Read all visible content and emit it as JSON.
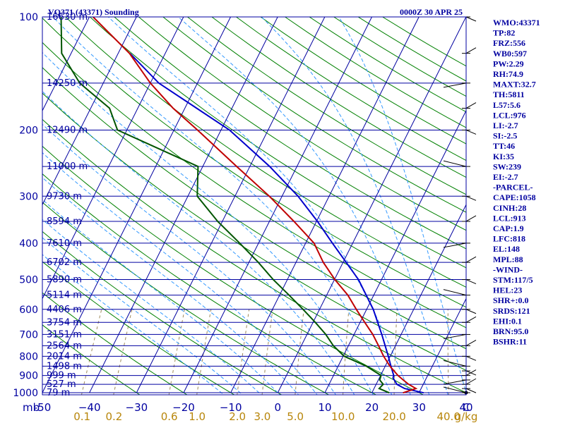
{
  "header": {
    "title": "VQ371 (43371) Sounding",
    "time": "0000Z 30 APR 25"
  },
  "indices": [
    "WMO:43371",
    "TP:82",
    "FRZ:556",
    "WB0:597",
    "PW:2.29",
    "RH:74.9",
    "MAXT:32.7",
    "TH:5811",
    "L57:5.6",
    "LCL:976",
    "LI:-2.7",
    "SI:-2.5",
    "TT:46",
    "KI:35",
    "SW:239",
    "EI:-2.7",
    "-PARCEL-",
    "CAPE:1058",
    "CINH:28",
    "LCL:913",
    "CAP:1.9",
    "LFC:818",
    "EL:148",
    "MPL:88",
    "-WIND-",
    "STM:117/5",
    "HEL:23",
    "SHR+:0.0",
    "SRDS:121",
    "EHI:0.1",
    "BRN:95.0",
    "BSHR:11"
  ],
  "colors": {
    "isobar": "#0000a0",
    "isotherm": "#0000a0",
    "dry_adiabat": "#008000",
    "moist_adiabat": "#3399ff",
    "mixing_ratio": "#9e8a5a",
    "temperature": "#c00000",
    "dewpoint": "#005500",
    "parcel": "#0000cc",
    "wind_barb": "#000000",
    "w_labels": "#b8860b"
  },
  "chart_data": {
    "type": "skew-t log-p sounding",
    "title": "VQ371 (43371) Sounding",
    "subtitle": "0000Z 30 APR 25",
    "pressure_axis": {
      "ticks": [
        100,
        200,
        300,
        400,
        500,
        600,
        700,
        800,
        900,
        1000
      ],
      "labels": [
        "100",
        "200",
        "300",
        "400",
        "500",
        "600",
        "700",
        "800",
        "900",
        "1000"
      ],
      "unit_label": "mb",
      "range": [
        100,
        1000
      ],
      "scale": "log"
    },
    "temperature_axis": {
      "ticks": [
        -50,
        -40,
        -30,
        -20,
        -10,
        0,
        10,
        20,
        30,
        40
      ],
      "labels": [
        "-50",
        "−40",
        "−30",
        "−20",
        "−10",
        "0",
        "10",
        "20",
        "30",
        "40"
      ],
      "unit_label": "C"
    },
    "mixing_ratio_axis": {
      "values": [
        0.1,
        0.2,
        0.6,
        1.0,
        2.0,
        3.0,
        5.0,
        10.0,
        20.0,
        40.0
      ],
      "labels": [
        "0.1",
        "0.2",
        "0.6",
        "1.0",
        "2.0",
        "3.0",
        "5.0",
        "10.0",
        "20.0",
        "40.0"
      ],
      "unit_label": "g/kg"
    },
    "heights": [
      {
        "p": 100,
        "label": "16630 m"
      },
      {
        "p": 150,
        "label": "14250 m"
      },
      {
        "p": 200,
        "label": "12490 m"
      },
      {
        "p": 250,
        "label": "11000 m"
      },
      {
        "p": 300,
        "label": "9730 m"
      },
      {
        "p": 350,
        "label": "8594 m"
      },
      {
        "p": 400,
        "label": "7610 m"
      },
      {
        "p": 450,
        "label": "6702 m"
      },
      {
        "p": 500,
        "label": "5890 m"
      },
      {
        "p": 550,
        "label": "5114 m"
      },
      {
        "p": 600,
        "label": "4406 m"
      },
      {
        "p": 650,
        "label": "3754 m"
      },
      {
        "p": 700,
        "label": "3151 m"
      },
      {
        "p": 750,
        "label": "2564 m"
      },
      {
        "p": 800,
        "label": "2014 m"
      },
      {
        "p": 850,
        "label": "1498 m"
      },
      {
        "p": 900,
        "label": "999 m"
      },
      {
        "p": 950,
        "label": "527 m"
      },
      {
        "p": 1000,
        "label": "79 m"
      }
    ],
    "temperature": [
      {
        "p": 1001,
        "t": 26.6
      },
      {
        "p": 975,
        "t": 28.9
      },
      {
        "p": 950,
        "t": 26.9
      },
      {
        "p": 925,
        "t": 25.3
      },
      {
        "p": 900,
        "t": 23.7
      },
      {
        "p": 850,
        "t": 21.0
      },
      {
        "p": 800,
        "t": 18.6
      },
      {
        "p": 750,
        "t": 16.4
      },
      {
        "p": 700,
        "t": 14.0
      },
      {
        "p": 650,
        "t": 11.0
      },
      {
        "p": 600,
        "t": 7.8
      },
      {
        "p": 550,
        "t": 4.5
      },
      {
        "p": 500,
        "t": 0.1
      },
      {
        "p": 450,
        "t": -4.2
      },
      {
        "p": 400,
        "t": -8.2
      },
      {
        "p": 350,
        "t": -14.8
      },
      {
        "p": 300,
        "t": -22.7
      },
      {
        "p": 250,
        "t": -32.8
      },
      {
        "p": 200,
        "t": -45.0
      },
      {
        "p": 175,
        "t": -52.5
      },
      {
        "p": 150,
        "t": -60.0
      },
      {
        "p": 125,
        "t": -67.6
      },
      {
        "p": 100,
        "t": -79.2
      }
    ],
    "dewpoint": [
      {
        "p": 1001,
        "td": 23.7
      },
      {
        "p": 975,
        "td": 21.1
      },
      {
        "p": 950,
        "td": 21.5
      },
      {
        "p": 925,
        "td": 20.3
      },
      {
        "p": 900,
        "td": 20.1
      },
      {
        "p": 850,
        "td": 16.0
      },
      {
        "p": 800,
        "td": 10.2
      },
      {
        "p": 750,
        "td": 6.8
      },
      {
        "p": 700,
        "td": 4.0
      },
      {
        "p": 650,
        "td": 0.5
      },
      {
        "p": 600,
        "td": -3.5
      },
      {
        "p": 550,
        "td": -8.0
      },
      {
        "p": 500,
        "td": -13.0
      },
      {
        "p": 450,
        "td": -18.0
      },
      {
        "p": 400,
        "td": -24.0
      },
      {
        "p": 350,
        "td": -31.0
      },
      {
        "p": 300,
        "td": -38.0
      },
      {
        "p": 250,
        "td": -41.0
      },
      {
        "p": 200,
        "td": -62.0
      },
      {
        "p": 175,
        "td": -66.0
      },
      {
        "p": 150,
        "td": -75.0
      },
      {
        "p": 125,
        "td": -82.0
      },
      {
        "p": 100,
        "td": -86.0
      }
    ],
    "parcel": [
      {
        "p": 1001,
        "t": 31.0
      },
      {
        "p": 975,
        "t": 26.5
      },
      {
        "p": 950,
        "t": 24.4
      },
      {
        "p": 913,
        "t": 22.9
      },
      {
        "p": 900,
        "t": 22.8
      },
      {
        "p": 850,
        "t": 21.2
      },
      {
        "p": 800,
        "t": 19.6
      },
      {
        "p": 700,
        "t": 15.9
      },
      {
        "p": 600,
        "t": 11.4
      },
      {
        "p": 500,
        "t": 5.1
      },
      {
        "p": 400,
        "t": -4.3
      },
      {
        "p": 350,
        "t": -9.8
      },
      {
        "p": 300,
        "t": -16.6
      },
      {
        "p": 250,
        "t": -25.8
      },
      {
        "p": 200,
        "t": -38.2
      },
      {
        "p": 150,
        "t": -58.2
      },
      {
        "p": 125,
        "t": -67.5
      }
    ],
    "wind_levels_mb": [
      1000,
      975,
      950,
      925,
      900,
      875,
      850,
      800,
      750,
      700,
      650,
      600,
      550,
      500,
      450,
      400,
      350,
      300,
      250,
      200,
      175,
      150,
      125,
      100
    ]
  }
}
